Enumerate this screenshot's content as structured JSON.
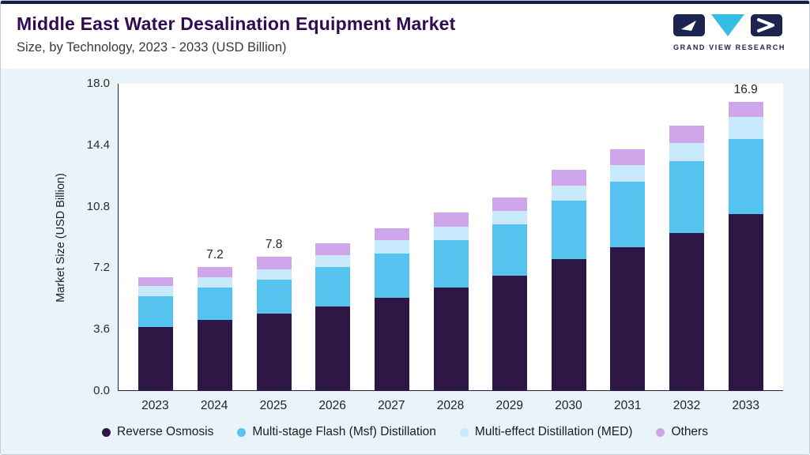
{
  "header": {
    "title": "Middle East Water Desalination Equipment Market",
    "subtitle": "Size, by Technology, 2023 - 2033 (USD Billion)",
    "logo_text": "GRAND VIEW RESEARCH"
  },
  "colors": {
    "topbar": "#191b4a",
    "title": "#310a52",
    "panel_bg": "#e9f3fa",
    "axis": "#23233d",
    "logo_navy": "#1d2452",
    "logo_cyan": "#35bde4"
  },
  "chart_data": {
    "type": "bar",
    "stacked": true,
    "title": "Middle East Water Desalination Equipment Market Size, by Technology, 2023 - 2033 (USD Billion)",
    "xlabel": "",
    "ylabel": "Market Size (USD Billion)",
    "ylim": [
      0,
      18
    ],
    "yticks": [
      "0.0",
      "3.6",
      "7.2",
      "10.8",
      "14.4",
      "18.0"
    ],
    "grid": false,
    "legend_position": "bottom",
    "categories": [
      "2023",
      "2024",
      "2025",
      "2026",
      "2027",
      "2028",
      "2029",
      "2030",
      "2031",
      "2032",
      "2033"
    ],
    "series": [
      {
        "name": "Reverse Osmosis",
        "color": "#2e1745",
        "values": [
          3.7,
          4.1,
          4.5,
          4.9,
          5.4,
          6.0,
          6.7,
          7.7,
          8.4,
          9.2,
          10.3
        ]
      },
      {
        "name": "Multi-stage Flash (Msf) Distillation",
        "color": "#56c2f0",
        "values": [
          1.8,
          1.9,
          2.0,
          2.3,
          2.6,
          2.8,
          3.0,
          3.4,
          3.8,
          4.2,
          4.4
        ]
      },
      {
        "name": "Multi-effect Distillation (MED)",
        "color": "#c8eafc",
        "values": [
          0.6,
          0.6,
          0.6,
          0.7,
          0.8,
          0.8,
          0.8,
          0.9,
          1.0,
          1.1,
          1.3
        ]
      },
      {
        "name": "Others",
        "color": "#cfa6e9",
        "values": [
          0.5,
          0.6,
          0.7,
          0.7,
          0.7,
          0.8,
          0.8,
          0.9,
          0.9,
          1.0,
          0.9
        ]
      }
    ],
    "totals": [
      6.6,
      7.2,
      7.8,
      8.6,
      9.5,
      10.4,
      11.3,
      12.9,
      14.1,
      15.5,
      16.9
    ],
    "bar_labels": [
      "",
      "7.2",
      "7.8",
      "",
      "",
      "",
      "",
      "",
      "",
      "",
      "16.9"
    ]
  }
}
